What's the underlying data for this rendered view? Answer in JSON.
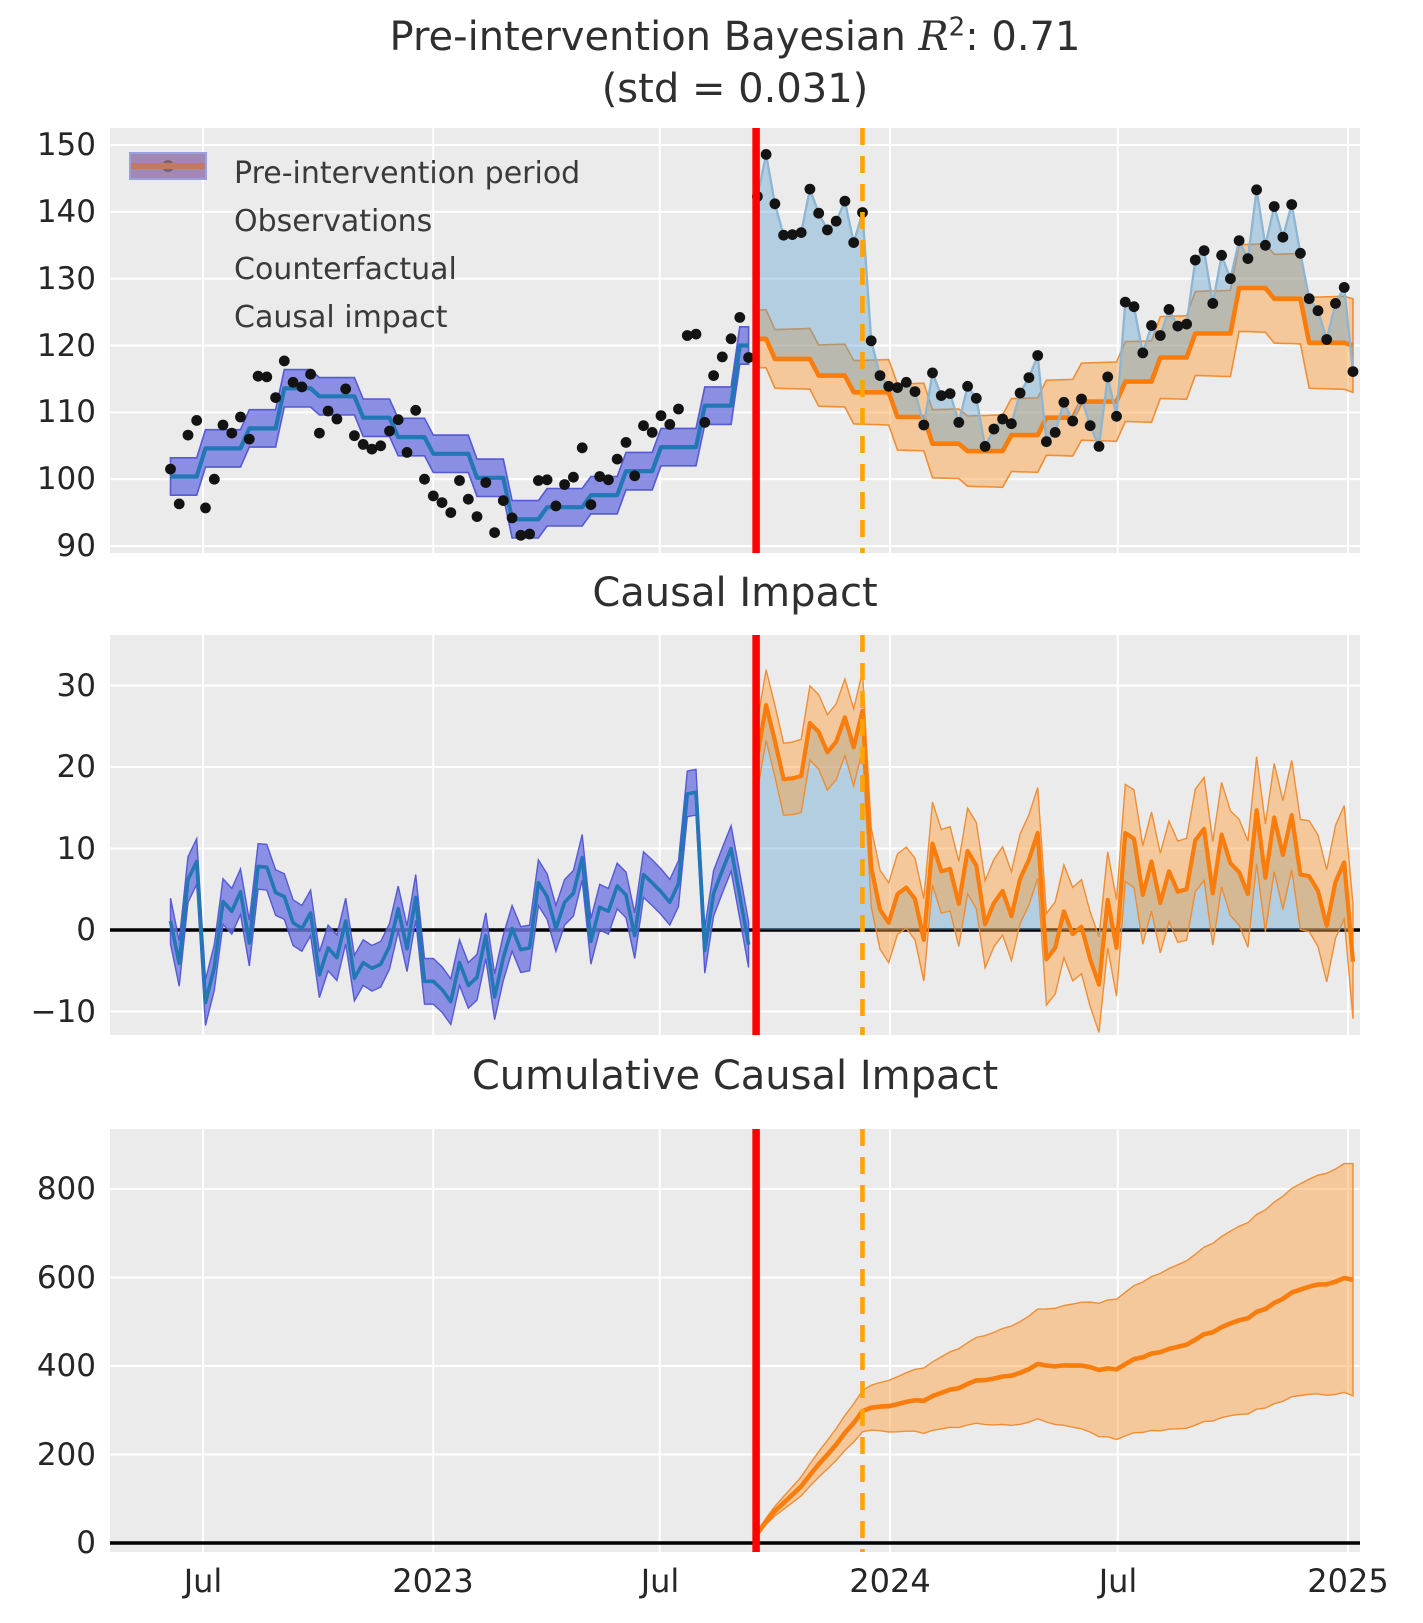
{
  "titles": {
    "main_prefix": "Pre-intervention Bayesian ",
    "main_r": "R",
    "main_exp": "2",
    "main_suffix": ": 0.71",
    "main_line2": "(std = 0.031)",
    "panel2": "Causal Impact",
    "panel3": "Cumulative Causal Impact"
  },
  "legend": {
    "items": [
      {
        "label": "Pre-intervention period",
        "swatch": "blue-band"
      },
      {
        "label": "Observations",
        "swatch": "black-dot"
      },
      {
        "label": "Counterfactual",
        "swatch": "orange-band"
      },
      {
        "label": "Causal impact",
        "swatch": "lavender-patch"
      }
    ]
  },
  "colors": {
    "axes_background": "#ebebeb",
    "grid": "#ffffff",
    "pre_band": "rgba(114,120,225,0.80)",
    "pre_band_edge": "rgba(80,84,210,0.95)",
    "fit_line": "#2178b4",
    "observations": "#131313",
    "obs_line_post": "#8cb6d3",
    "cf_band": "rgba(255,157,55,0.45)",
    "cf_band_edge": "rgba(238,138,46,0.95)",
    "cf_line": "#f87d0d",
    "causal_fill": "rgba(90,161,211,0.38)",
    "treatment_line": "#fe0000",
    "marker2_line": "#ffa404",
    "zero_line": "#000000",
    "legend_causal_patch": "rgba(120,118,220,0.42)",
    "legend_causal_edge": "#9aa0dd",
    "legend_blue_line": "#2456c0"
  },
  "panels": [
    {
      "id": "p1",
      "yticks": [
        {
          "v": 90,
          "label": "90"
        },
        {
          "v": 100,
          "label": "100"
        },
        {
          "v": 110,
          "label": "110"
        },
        {
          "v": 120,
          "label": "120"
        },
        {
          "v": 130,
          "label": "130"
        },
        {
          "v": 140,
          "label": "140"
        },
        {
          "v": 150,
          "label": "150"
        }
      ],
      "ylim": [
        89.0,
        152.5
      ]
    },
    {
      "id": "p2",
      "yticks": [
        {
          "v": -10,
          "label": "−10"
        },
        {
          "v": 0,
          "label": "0"
        },
        {
          "v": 10,
          "label": "10"
        },
        {
          "v": 20,
          "label": "20"
        },
        {
          "v": 30,
          "label": "30"
        }
      ],
      "ylim": [
        -12.9,
        36.2
      ]
    },
    {
      "id": "p3",
      "yticks": [
        {
          "v": 0,
          "label": "0"
        },
        {
          "v": 200,
          "label": "200"
        },
        {
          "v": 400,
          "label": "400"
        },
        {
          "v": 600,
          "label": "600"
        },
        {
          "v": 800,
          "label": "800"
        }
      ],
      "ylim": [
        -20,
        936
      ]
    }
  ],
  "xticks": [
    {
      "label": "Jul",
      "date": "2022-07-01"
    },
    {
      "label": "2023",
      "date": "2023-01-01"
    },
    {
      "label": "Jul",
      "date": "2023-07-01"
    },
    {
      "label": "2024",
      "date": "2024-01-01"
    },
    {
      "label": "Jul",
      "date": "2024-07-01"
    },
    {
      "label": "2025",
      "date": "2025-01-01"
    }
  ],
  "chart_data": {
    "type": "line",
    "title": "Pre-intervention Bayesian R2: 0.71 (std = 0.031)",
    "panel_titles": [
      "",
      "Causal Impact",
      "Cumulative Causal Impact"
    ],
    "x": {
      "start": "2022-06-05",
      "freq_days": 7,
      "n": 136,
      "axis_domain": [
        "2022-04-18",
        "2025-01-13"
      ]
    },
    "intervention": {
      "treatment_date": "2023-09-16",
      "secondary_marker_date": "2023-12-10"
    },
    "series": {
      "observations": [
        101.5,
        96.3,
        106.6,
        108.8,
        95.7,
        100.0,
        108.1,
        106.9,
        109.3,
        106.0,
        115.4,
        115.3,
        112.2,
        117.7,
        114.5,
        113.8,
        115.7,
        106.9,
        110.2,
        109.0,
        113.5,
        106.5,
        105.2,
        104.5,
        105.0,
        107.2,
        108.9,
        104.0,
        110.3,
        100.0,
        97.5,
        96.5,
        95.0,
        99.8,
        97.0,
        94.4,
        99.5,
        92.0,
        96.8,
        94.2,
        91.6,
        91.8,
        99.8,
        99.9,
        96.0,
        99.2,
        100.3,
        104.7,
        96.2,
        100.4,
        99.9,
        103.0,
        105.5,
        100.5,
        108.0,
        107.0,
        109.5,
        108.2,
        110.5,
        121.5,
        121.7,
        108.5,
        115.5,
        118.3,
        121.0,
        124.2,
        118.2,
        142.3,
        148.6,
        141.2,
        136.5,
        136.6,
        136.9,
        143.4,
        139.8,
        137.3,
        138.6,
        141.6,
        135.4,
        139.9,
        120.7,
        115.5,
        113.9,
        113.7,
        114.5,
        113.1,
        108.1,
        115.9,
        112.5,
        112.8,
        108.5,
        113.9,
        112.1,
        104.9,
        107.5,
        109.0,
        108.3,
        112.9,
        115.2,
        118.5,
        105.6,
        107.0,
        111.5,
        108.7,
        112.0,
        108.0,
        104.9,
        115.3,
        109.4,
        126.5,
        125.8,
        118.9,
        123.0,
        121.5,
        125.4,
        122.9,
        123.2,
        132.8,
        134.2,
        126.3,
        133.5,
        130.0,
        135.7,
        133.0,
        143.3,
        135.0,
        140.8,
        136.2,
        141.1,
        133.8,
        127.0,
        125.2,
        120.9,
        126.3,
        128.7,
        116.1
      ],
      "pre_fit_mean": [
        100.4,
        100.4,
        100.4,
        100.4,
        104.6,
        104.6,
        104.6,
        104.6,
        104.6,
        107.6,
        107.6,
        107.6,
        107.6,
        113.6,
        113.6,
        113.6,
        113.6,
        112.4,
        112.4,
        112.4,
        112.4,
        112.4,
        109.2,
        109.2,
        109.2,
        109.2,
        106.3,
        106.3,
        106.3,
        106.3,
        103.8,
        103.8,
        103.8,
        103.8,
        103.8,
        100.2,
        100.2,
        100.2,
        100.2,
        94.0,
        94.0,
        94.0,
        94.0,
        95.8,
        95.8,
        95.8,
        95.8,
        95.8,
        97.6,
        97.6,
        97.6,
        97.6,
        101.2,
        101.2,
        101.2,
        101.2,
        104.8,
        104.8,
        104.8,
        104.8,
        104.8,
        111.0,
        111.0,
        111.0,
        111.0,
        120.0,
        120.0
      ],
      "pre_fit_band_halfwidth": 2.8,
      "counterfactual_mean": [
        121.0,
        121.0,
        118.0,
        118.0,
        118.0,
        118.0,
        118.0,
        115.5,
        115.5,
        115.5,
        115.5,
        113.0,
        113.0,
        113.0,
        113.0,
        113.0,
        109.3,
        109.3,
        109.3,
        109.3,
        105.3,
        105.3,
        105.3,
        105.3,
        104.2,
        104.2,
        104.2,
        104.2,
        104.2,
        106.6,
        106.6,
        106.6,
        106.6,
        109.2,
        109.2,
        109.2,
        109.2,
        111.6,
        111.6,
        111.6,
        111.6,
        111.6,
        114.6,
        114.6,
        114.6,
        114.6,
        118.2,
        118.2,
        118.2,
        118.2,
        121.8,
        121.8,
        121.8,
        121.8,
        121.8,
        128.6,
        128.6,
        128.6,
        128.6,
        127.0,
        127.0,
        127.0,
        127.0,
        120.4,
        120.4,
        120.4,
        120.4,
        120.4,
        120.0
      ],
      "counterfactual_band_halfwidth": {
        "start": 4.3,
        "end": 7.0
      },
      "pointwise_impact": "derived: observations minus pre_fit_mean (pre) / counterfactual_mean (post)",
      "cumulative_impact": {
        "derived": "running sum of post-period pointwise impact",
        "value_at_secondary_marker": 298,
        "final_mean": 595,
        "band_halfwidth_at_marker": 47,
        "band_halfwidth_at_end": 262
      }
    }
  }
}
